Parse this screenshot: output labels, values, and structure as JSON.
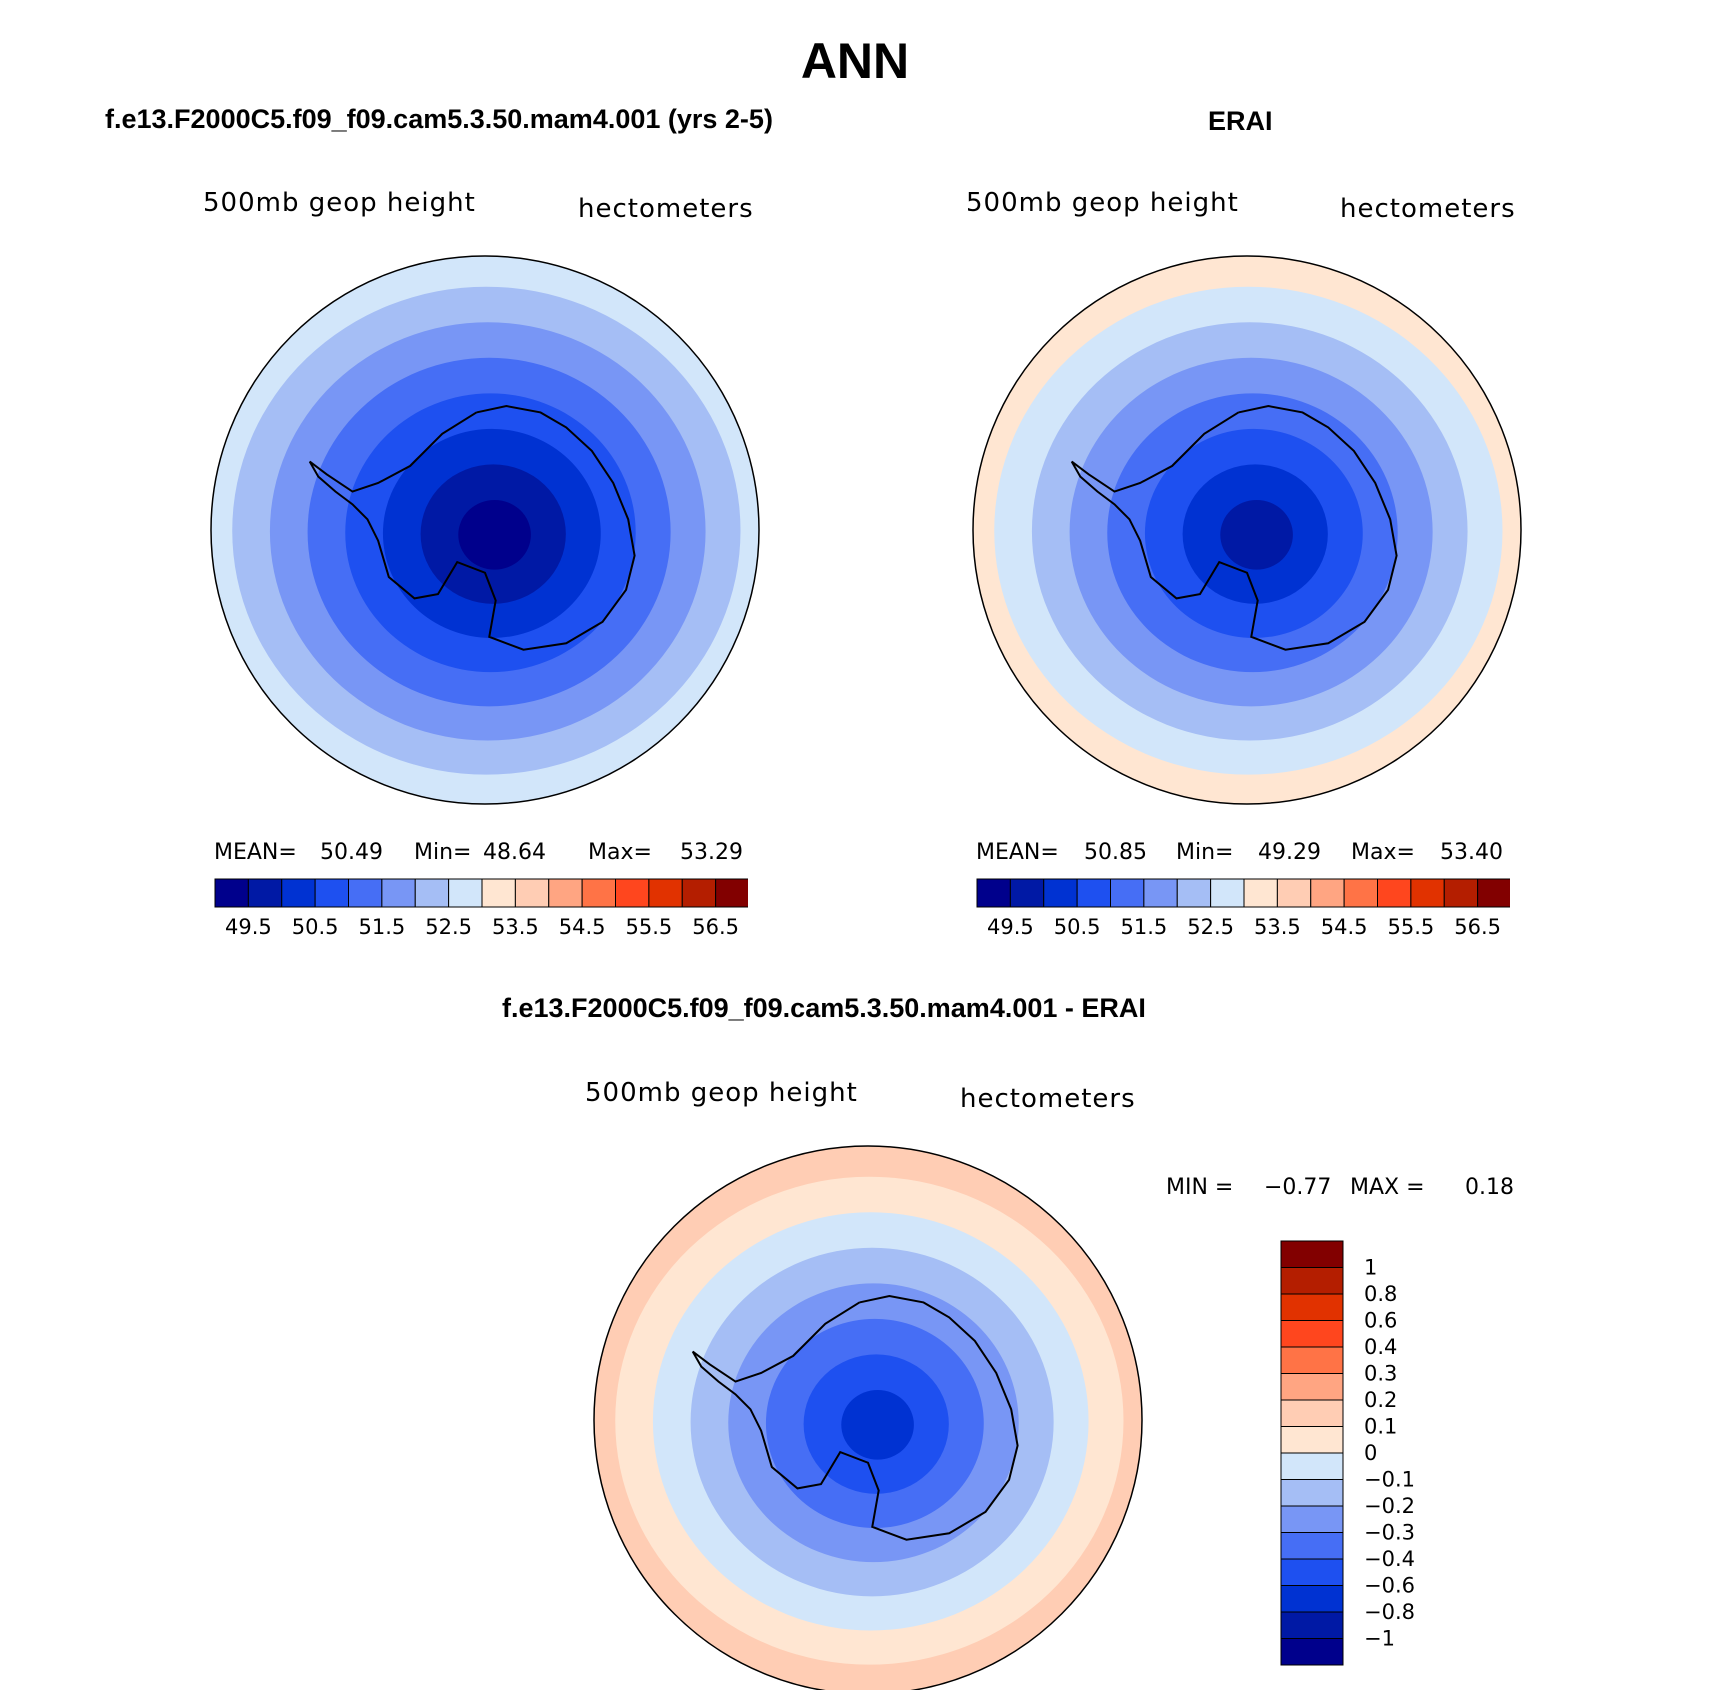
{
  "title": "ANN",
  "colors": {
    "fill_levels": [
      "#00008c",
      "#0019a5",
      "#0032d2",
      "#1e50f0",
      "#466ef5",
      "#7896f5",
      "#a5bef5",
      "#d2e6fa",
      "#ffe6d2",
      "#ffcdb4",
      "#ffa582",
      "#ff7346",
      "#ff461e",
      "#e13200",
      "#b41e00",
      "#820000"
    ],
    "diff_levels": [
      "#00008c",
      "#0019a5",
      "#0032d2",
      "#1e50f0",
      "#466ef5",
      "#7896f5",
      "#a5bef5",
      "#d2e6fa",
      "#ffe6d2",
      "#ffcdb4",
      "#ffa582",
      "#ff7346",
      "#ff461e",
      "#e13200",
      "#b41e00",
      "#820000"
    ]
  },
  "chart_data": [
    {
      "type": "heatmap",
      "projection": "south-polar-stereographic",
      "title": "f.e13.F2000C5.f09_f09.cam5.3.50.mam4.001 (yrs 2-5)",
      "left_label": "500mb  geop  height",
      "right_label": "hectometers",
      "stats": {
        "mean_label": "MEAN=",
        "mean": "50.49",
        "min_label": "Min=",
        "min": "48.64",
        "max_label": "Max=",
        "max": "53.29"
      },
      "colorbar_ticks": [
        "49.5",
        "50.5",
        "51.5",
        "52.5",
        "53.5",
        "54.5",
        "55.5",
        "56.5"
      ],
      "field_levels": [
        7,
        6,
        5,
        4,
        3,
        2,
        1,
        0
      ]
    },
    {
      "type": "heatmap",
      "projection": "south-polar-stereographic",
      "title": "ERAI",
      "left_label": "500mb  geop  height",
      "right_label": "hectometers",
      "stats": {
        "mean_label": "MEAN=",
        "mean": "50.85",
        "min_label": "Min=",
        "min": "49.29",
        "max_label": "Max=",
        "max": "53.40"
      },
      "colorbar_ticks": [
        "49.5",
        "50.5",
        "51.5",
        "52.5",
        "53.5",
        "54.5",
        "55.5",
        "56.5"
      ],
      "field_levels": [
        8,
        7,
        6,
        5,
        4,
        3,
        2,
        1
      ]
    },
    {
      "type": "heatmap",
      "projection": "south-polar-stereographic",
      "title": "f.e13.F2000C5.f09_f09.cam5.3.50.mam4.001 - ERAI",
      "left_label": "500mb  geop  height",
      "right_label": "hectometers",
      "stats": {
        "min_label": "MIN =",
        "min": "−0.77",
        "max_label": "MAX =",
        "max": "0.18"
      },
      "colorbar_ticks": [
        "1",
        "0.8",
        "0.6",
        "0.4",
        "0.3",
        "0.2",
        "0.1",
        "0",
        "−0.1",
        "−0.2",
        "−0.3",
        "−0.4",
        "−0.6",
        "−0.8",
        "−1"
      ],
      "field_levels": [
        9,
        8,
        7,
        6,
        5,
        4,
        3,
        2
      ]
    }
  ]
}
